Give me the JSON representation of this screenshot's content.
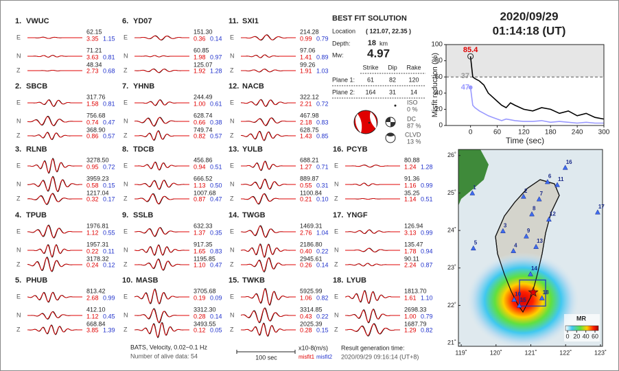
{
  "components": [
    "E",
    "N",
    "Z"
  ],
  "stations": [
    {
      "no": "1.",
      "name": "VWUC",
      "rows": [
        [
          "62.15",
          "3.35",
          "1.15"
        ],
        [
          "71.21",
          "3.63",
          "0.81"
        ],
        [
          "48.34",
          "2.73",
          "0.68"
        ]
      ]
    },
    {
      "no": "2.",
      "name": "SBCB",
      "rows": [
        [
          "317.76",
          "1.58",
          "0.81"
        ],
        [
          "756.68",
          "0.74",
          "0.47"
        ],
        [
          "368.90",
          "0.86",
          "0.57"
        ]
      ]
    },
    {
      "no": "3.",
      "name": "RLNB",
      "rows": [
        [
          "3278.50",
          "0.95",
          "0.72"
        ],
        [
          "3959.23",
          "0.58",
          "0.15"
        ],
        [
          "1217.04",
          "0.32",
          "0.17"
        ]
      ]
    },
    {
      "no": "4.",
      "name": "TPUB",
      "rows": [
        [
          "1976.81",
          "1.12",
          "0.55"
        ],
        [
          "1957.31",
          "0.22",
          "0.11"
        ],
        [
          "3178.32",
          "0.24",
          "0.12"
        ]
      ]
    },
    {
      "no": "5.",
      "name": "PHUB",
      "rows": [
        [
          "813.42",
          "2.68",
          "0.99"
        ],
        [
          "412.10",
          "1.12",
          "0.45"
        ],
        [
          "668.84",
          "3.85",
          "1.39"
        ]
      ]
    },
    {
      "no": "6.",
      "name": "YD07",
      "rows": [
        [
          "151.30",
          "0.36",
          "0.14"
        ],
        [
          "60.85",
          "1.98",
          "0.97"
        ],
        [
          "125.07",
          "1.92",
          "1.28"
        ]
      ]
    },
    {
      "no": "7.",
      "name": "YHNB",
      "rows": [
        [
          "244.49",
          "1.00",
          "0.61"
        ],
        [
          "628.74",
          "0.66",
          "0.38"
        ],
        [
          "749.74",
          "0.82",
          "0.57"
        ]
      ]
    },
    {
      "no": "8.",
      "name": "TDCB",
      "rows": [
        [
          "456.86",
          "0.94",
          "0.51"
        ],
        [
          "666.52",
          "1.13",
          "0.50"
        ],
        [
          "1007.68",
          "0.87",
          "0.47"
        ]
      ]
    },
    {
      "no": "9.",
      "name": "SSLB",
      "rows": [
        [
          "632.33",
          "1.37",
          "0.35"
        ],
        [
          "917.35",
          "1.65",
          "0.83"
        ],
        [
          "1195.85",
          "1.10",
          "0.47"
        ]
      ]
    },
    {
      "no": "10.",
      "name": "MASB",
      "rows": [
        [
          "3705.68",
          "0.19",
          "0.09"
        ],
        [
          "3312.30",
          "0.28",
          "0.14"
        ],
        [
          "3493.55",
          "0.12",
          "0.05"
        ]
      ]
    },
    {
      "no": "11.",
      "name": "SXI1",
      "rows": [
        [
          "214.28",
          "0.99",
          "0.79"
        ],
        [
          "97.06",
          "1.41",
          "0.89"
        ],
        [
          "99.26",
          "1.91",
          "1.03"
        ]
      ]
    },
    {
      "no": "12.",
      "name": "NACB",
      "rows": [
        [
          "322.12",
          "2.21",
          "0.72"
        ],
        [
          "467.98",
          "2.18",
          "0.83"
        ],
        [
          "628.75",
          "1.43",
          "0.85"
        ]
      ]
    },
    {
      "no": "13.",
      "name": "YULB",
      "rows": [
        [
          "688.21",
          "1.27",
          "0.71"
        ],
        [
          "889.87",
          "0.55",
          "0.31"
        ],
        [
          "1100.84",
          "0.21",
          "0.10"
        ]
      ]
    },
    {
      "no": "14.",
      "name": "TWGB",
      "rows": [
        [
          "1469.31",
          "2.76",
          "1.04"
        ],
        [
          "2186.80",
          "0.40",
          "0.22"
        ],
        [
          "2945.61",
          "0.26",
          "0.14"
        ]
      ]
    },
    {
      "no": "15.",
      "name": "TWKB",
      "rows": [
        [
          "5925.99",
          "1.06",
          "0.82"
        ],
        [
          "3314.85",
          "0.43",
          "0.22"
        ],
        [
          "2025.39",
          "0.28",
          "0.15"
        ]
      ]
    },
    {
      "no": "16.",
      "name": "PCYB",
      "rows": [
        [
          "80.88",
          "1.24",
          "1.28"
        ],
        [
          "91.36",
          "1.16",
          "0.99"
        ],
        [
          "35.25",
          "1.14",
          "0.51"
        ]
      ]
    },
    {
      "no": "17.",
      "name": "YNGF",
      "rows": [
        [
          "126.94",
          "3.13",
          "0.99"
        ],
        [
          "135.47",
          "1.78",
          "0.94"
        ],
        [
          "90.11",
          "2.24",
          "0.87"
        ]
      ]
    },
    {
      "no": "18.",
      "name": "LYUB",
      "rows": [
        [
          "1813.70",
          "1.61",
          "1.10"
        ],
        [
          "2698.33",
          "1.00",
          "0.79"
        ],
        [
          "1687.79",
          "1.29",
          "0.82"
        ]
      ]
    }
  ],
  "solution": {
    "title": "BEST FIT SOLUTION",
    "location_label": "Location",
    "location": "( 121.07, 22.35 )",
    "depth_label": "Depth:",
    "depth": "18",
    "depth_unit": "km",
    "mw_label": "Mw:",
    "mw": "4.97",
    "columns": [
      "Strike",
      "Dip",
      "Rake"
    ],
    "planes": [
      [
        "Plane 1:",
        "61",
        "82",
        "120"
      ],
      [
        "Plane 2:",
        "164",
        "31",
        "14"
      ]
    ],
    "components": [
      [
        "ISO",
        "0 %"
      ],
      [
        "DC",
        "87 %"
      ],
      [
        "CLVD",
        "13 %"
      ]
    ]
  },
  "date": "2020/09/29",
  "time": "01:14:18  (UT)",
  "chart_data": {
    "type": "line",
    "xlabel": "Time (sec)",
    "ylabel": "Misfit reduction (%)",
    "xlim": [
      -55,
      300
    ],
    "ylim": [
      0,
      100
    ],
    "xticks": [
      0,
      60,
      120,
      180,
      240,
      300
    ],
    "yticks": [
      0,
      20,
      40,
      60,
      80,
      100
    ],
    "threshold": 60,
    "x": [
      0,
      5,
      10,
      20,
      30,
      40,
      50,
      60,
      70,
      80,
      90,
      100,
      120,
      140,
      160,
      180,
      200,
      220,
      240,
      260,
      280,
      300
    ],
    "series": [
      {
        "color": "#000000",
        "values": [
          85.4,
          60,
          58,
          55,
          50,
          40,
          35,
          30,
          25,
          22,
          28,
          25,
          20,
          18,
          22,
          20,
          15,
          18,
          12,
          15,
          10,
          8
        ]
      },
      {
        "color": "#9999ff",
        "values": [
          47,
          25,
          22,
          18,
          15,
          12,
          10,
          8,
          6,
          8,
          7,
          6,
          5,
          5,
          6,
          4,
          5,
          4,
          3,
          4,
          3,
          3
        ]
      }
    ],
    "annotations": [
      {
        "text": "85.4",
        "x": 0,
        "y": 85.4,
        "color": "#e00000"
      },
      {
        "text": "37",
        "x": -12,
        "y": 61,
        "color": "#999999"
      },
      {
        "text": "47",
        "x": -12,
        "y": 47,
        "color": "#9999ff"
      }
    ]
  },
  "map": {
    "lonlim": [
      118.92,
      123.06
    ],
    "latlim": [
      20.91,
      26.16
    ],
    "lonticks": [
      {
        "value": 119,
        "label": "119˚"
      },
      {
        "value": 120,
        "label": "120˚"
      },
      {
        "value": 121,
        "label": "121˚"
      },
      {
        "value": 122,
        "label": "122˚"
      },
      {
        "value": 123,
        "label": "123˚"
      }
    ],
    "latticks": [
      {
        "value": 21,
        "label": "21˚"
      },
      {
        "value": 22,
        "label": "22˚"
      },
      {
        "value": 23,
        "label": "23˚"
      },
      {
        "value": 24,
        "label": "24˚"
      },
      {
        "value": 25,
        "label": "25˚"
      },
      {
        "value": 26,
        "label": "26˚"
      }
    ],
    "stations": [
      {
        "label": "1",
        "lon": 119.32,
        "lat": 24.99
      },
      {
        "label": "2",
        "lon": 120.79,
        "lat": 24.9
      },
      {
        "label": "3",
        "lon": 120.2,
        "lat": 23.98
      },
      {
        "label": "4",
        "lon": 120.5,
        "lat": 23.45
      },
      {
        "label": "5",
        "lon": 119.35,
        "lat": 23.52
      },
      {
        "label": "6",
        "lon": 121.48,
        "lat": 25.29
      },
      {
        "label": "7",
        "lon": 121.24,
        "lat": 24.83
      },
      {
        "label": "8",
        "lon": 121.03,
        "lat": 24.43
      },
      {
        "label": "9",
        "lon": 120.87,
        "lat": 23.84
      },
      {
        "label": "10",
        "lon": 120.52,
        "lat": 22.15
      },
      {
        "label": "11",
        "lon": 121.76,
        "lat": 25.21
      },
      {
        "label": "12",
        "lon": 121.52,
        "lat": 24.29
      },
      {
        "label": "13",
        "lon": 121.15,
        "lat": 23.56
      },
      {
        "label": "14",
        "lon": 120.99,
        "lat": 22.83
      },
      {
        "label": "15",
        "lon": 120.67,
        "lat": 21.99
      },
      {
        "label": "16",
        "lon": 121.99,
        "lat": 25.67
      },
      {
        "label": "17",
        "lon": 122.92,
        "lat": 24.48
      },
      {
        "label": "18",
        "lon": 121.32,
        "lat": 22.19
      }
    ],
    "epicenter": {
      "lon": 121.07,
      "lat": 22.35
    },
    "colorbar_title": "MR",
    "clim": [
      0,
      60
    ],
    "cticks": [
      0,
      20,
      40,
      60
    ]
  },
  "footer": {
    "filter": "BATS, Velocity, 0.02~0.1 Hz",
    "alive": "Number of alive data: 54",
    "scale": "100 sec",
    "unit": "x10-8(m/s)",
    "misfit1": "misfit1",
    "misfit2": "misfit2",
    "gen_label": "Result generation time:",
    "gen_time": "2020/09/29 09:16:14 (UT+8)"
  }
}
